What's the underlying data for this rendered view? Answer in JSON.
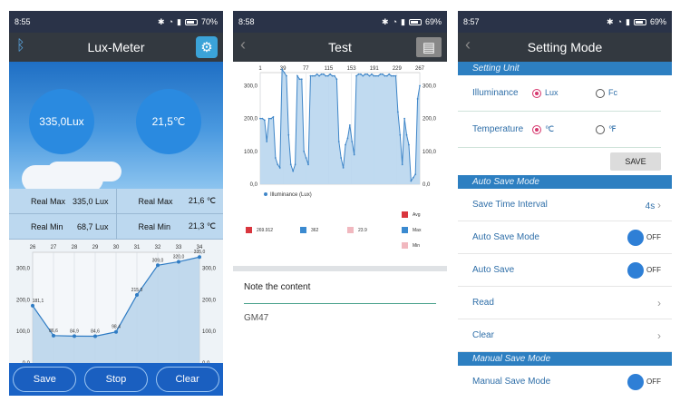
{
  "screen1": {
    "status": {
      "time": "8:55",
      "battery": "70%"
    },
    "title": "Lux-Meter",
    "lux_value": "335,0Lux",
    "temp_value": "21,5℃",
    "stats": [
      {
        "label": "Real Max",
        "value": "335,0 Lux",
        "label2": "Real Max",
        "value2": "21,6 ℃"
      },
      {
        "label": "Real Min",
        "value": "68,7 Lux",
        "label2": "Real Min",
        "value2": "21,3 ℃"
      }
    ],
    "buttons": {
      "save": "Save",
      "stop": "Stop",
      "clear": "Clear"
    },
    "chart_data": {
      "type": "line",
      "categories": [
        "26",
        "27",
        "28",
        "29",
        "30",
        "31",
        "32",
        "33",
        "34"
      ],
      "series": [
        {
          "name": "Illuminance (Lux)",
          "values": [
            181.1,
            86.6,
            84.9,
            84.6,
            98.4,
            215.0,
            309.0,
            320.0,
            335.0
          ]
        }
      ],
      "value_labels": [
        "181,1",
        "86,6",
        "84,9",
        "84,6",
        "98,4",
        "215,0",
        "309,0",
        "320,0",
        "335,0"
      ],
      "yticks": [
        "0,0",
        "100,0",
        "200,0",
        "300,0"
      ],
      "ylim": [
        0,
        350
      ]
    }
  },
  "screen2": {
    "status": {
      "time": "8:58",
      "battery": "69%"
    },
    "title": "Test",
    "chart_data": {
      "type": "area",
      "xticks": [
        "1",
        "39",
        "77",
        "115",
        "153",
        "191",
        "229",
        "267"
      ],
      "yticks": [
        "0,0",
        "100,0",
        "200,0",
        "300,0"
      ],
      "ylim": [
        0,
        340
      ],
      "series_name": "Illuminance (Lux)",
      "values": [
        200,
        200,
        195,
        130,
        200,
        200,
        205,
        80,
        60,
        50,
        350,
        340,
        330,
        150,
        60,
        40,
        60,
        330,
        320,
        320,
        100,
        80,
        60,
        330,
        330,
        330,
        335,
        330,
        335,
        335,
        330,
        330,
        335,
        330,
        330,
        320,
        130,
        80,
        50,
        120,
        140,
        180,
        130,
        90,
        330,
        335,
        335,
        330,
        335,
        335,
        330,
        335,
        330,
        330,
        330,
        335,
        335,
        330,
        330,
        335,
        330,
        330,
        330,
        220,
        150,
        60,
        200,
        150,
        120,
        10,
        20,
        30,
        260,
        300
      ]
    },
    "legend": {
      "avg_label": "Avg",
      "max_label": "Max",
      "min_label": "Min",
      "values": [
        "269.912",
        "362",
        "23.9"
      ],
      "colors": {
        "avg": "#d9363e",
        "max": "#3b8ad0",
        "min": "#f1b8bf"
      }
    },
    "note_heading": "Note the content",
    "note_value": "GM47"
  },
  "screen3": {
    "status": {
      "time": "8:57",
      "battery": "69%"
    },
    "title": "Setting Mode",
    "section_unit": "Setting Unit",
    "illuminance_label": "Illuminance",
    "opt_lux": "Lux",
    "opt_fc": "Fc",
    "temperature_label": "Temperature",
    "opt_c": "℃",
    "opt_f": "℉",
    "save": "SAVE",
    "section_auto": "Auto Save Mode",
    "rows": [
      {
        "label": "Save Time Interval",
        "value": "4s"
      },
      {
        "label": "Auto Save Mode",
        "toggle": "OFF"
      },
      {
        "label": "Auto Save",
        "toggle": "OFF"
      },
      {
        "label": "Read"
      },
      {
        "label": "Clear"
      }
    ],
    "section_manual": "Manual Save Mode",
    "manual_row": {
      "label": "Manual Save Mode",
      "toggle": "OFF"
    }
  }
}
